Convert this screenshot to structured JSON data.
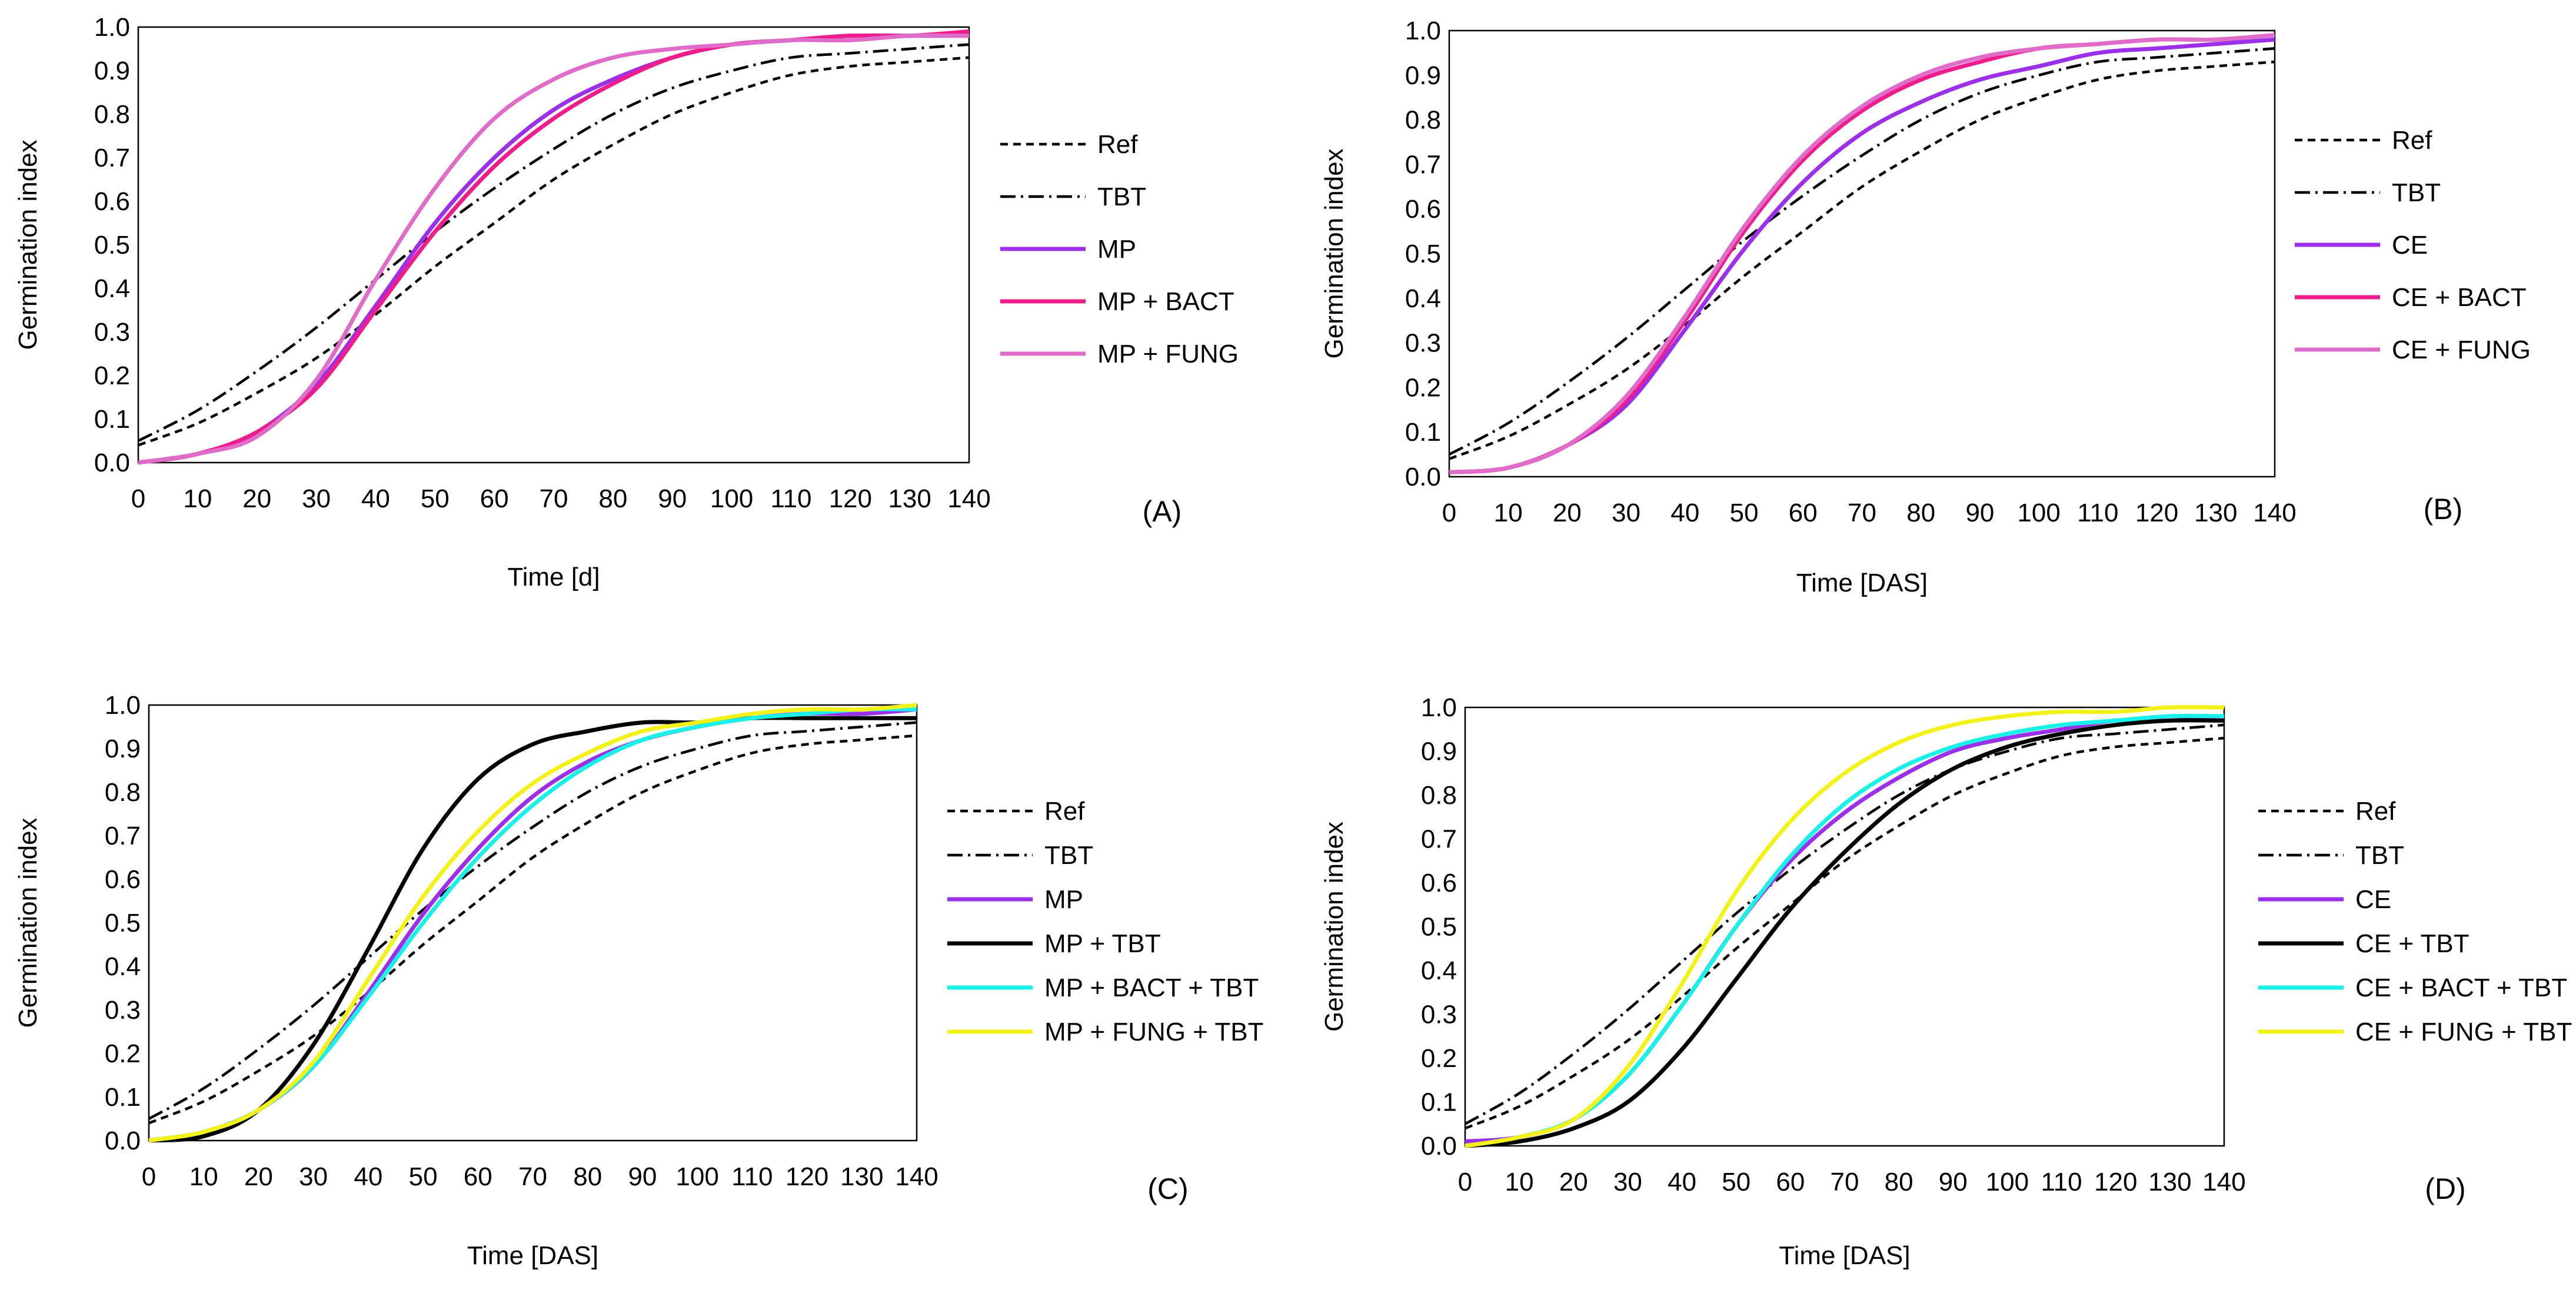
{
  "chart_data": [
    {
      "type": "line",
      "panel_label": "(A)",
      "xlabel": "Time [d]",
      "ylabel": "Germination index",
      "xlim": [
        0,
        140
      ],
      "ylim": [
        0.0,
        1.0
      ],
      "x_ticks": [
        "0",
        "10",
        "20",
        "30",
        "40",
        "50",
        "60",
        "70",
        "80",
        "90",
        "100",
        "110",
        "120",
        "130",
        "140"
      ],
      "y_ticks": [
        "0.0",
        "0.1",
        "0.2",
        "0.3",
        "0.4",
        "0.5",
        "0.6",
        "0.7",
        "0.8",
        "0.9",
        "1.0"
      ],
      "x": [
        0,
        10,
        20,
        30,
        40,
        50,
        60,
        70,
        80,
        90,
        100,
        110,
        120,
        130,
        140
      ],
      "series": [
        {
          "name": "Ref",
          "color": "#000000",
          "style": "dashed",
          "values": [
            0.04,
            0.09,
            0.16,
            0.24,
            0.34,
            0.45,
            0.55,
            0.65,
            0.73,
            0.8,
            0.85,
            0.89,
            0.91,
            0.92,
            0.93
          ]
        },
        {
          "name": "TBT",
          "color": "#000000",
          "style": "dashdot",
          "values": [
            0.05,
            0.12,
            0.21,
            0.31,
            0.42,
            0.53,
            0.63,
            0.72,
            0.8,
            0.86,
            0.9,
            0.93,
            0.94,
            0.95,
            0.96
          ]
        },
        {
          "name": "MP",
          "color": "#9b30e8",
          "style": "solid",
          "values": [
            0.0,
            0.02,
            0.07,
            0.18,
            0.36,
            0.55,
            0.7,
            0.81,
            0.88,
            0.93,
            0.96,
            0.97,
            0.98,
            0.98,
            0.98
          ]
        },
        {
          "name": "MP + BACT",
          "color": "#ef1c8c",
          "style": "solid",
          "values": [
            0.0,
            0.02,
            0.07,
            0.17,
            0.35,
            0.53,
            0.68,
            0.79,
            0.87,
            0.93,
            0.96,
            0.97,
            0.98,
            0.98,
            0.99
          ]
        },
        {
          "name": "MP + FUNG",
          "color": "#e06cc9",
          "style": "solid",
          "values": [
            0.0,
            0.02,
            0.06,
            0.19,
            0.42,
            0.63,
            0.79,
            0.88,
            0.93,
            0.95,
            0.96,
            0.97,
            0.97,
            0.98,
            0.98
          ]
        }
      ]
    },
    {
      "type": "line",
      "panel_label": "(B)",
      "xlabel": "Time [DAS]",
      "ylabel": "Germination index",
      "xlim": [
        0,
        140
      ],
      "ylim": [
        0.0,
        1.0
      ],
      "x_ticks": [
        "0",
        "10",
        "20",
        "30",
        "40",
        "50",
        "60",
        "70",
        "80",
        "90",
        "100",
        "110",
        "120",
        "130",
        "140"
      ],
      "y_ticks": [
        "0.0",
        "0.1",
        "0.2",
        "0.3",
        "0.4",
        "0.5",
        "0.6",
        "0.7",
        "0.8",
        "0.9",
        "1.0"
      ],
      "x": [
        0,
        10,
        20,
        30,
        40,
        50,
        60,
        70,
        80,
        90,
        100,
        110,
        120,
        130,
        140
      ],
      "series": [
        {
          "name": "Ref",
          "color": "#000000",
          "style": "dashed",
          "values": [
            0.04,
            0.09,
            0.16,
            0.24,
            0.34,
            0.45,
            0.55,
            0.65,
            0.73,
            0.8,
            0.85,
            0.89,
            0.91,
            0.92,
            0.93
          ]
        },
        {
          "name": "TBT",
          "color": "#000000",
          "style": "dashdot",
          "values": [
            0.05,
            0.12,
            0.21,
            0.31,
            0.42,
            0.53,
            0.63,
            0.72,
            0.8,
            0.86,
            0.9,
            0.93,
            0.94,
            0.95,
            0.96
          ]
        },
        {
          "name": "CE",
          "color": "#9b30e8",
          "style": "solid",
          "values": [
            0.01,
            0.02,
            0.07,
            0.16,
            0.33,
            0.51,
            0.66,
            0.77,
            0.84,
            0.89,
            0.92,
            0.95,
            0.96,
            0.97,
            0.98
          ]
        },
        {
          "name": "CE + BACT",
          "color": "#ef1c8c",
          "style": "solid",
          "values": [
            0.01,
            0.02,
            0.07,
            0.17,
            0.35,
            0.55,
            0.71,
            0.82,
            0.89,
            0.93,
            0.96,
            0.97,
            0.98,
            0.98,
            0.99
          ]
        },
        {
          "name": "CE + FUNG",
          "color": "#e06cc9",
          "style": "solid",
          "values": [
            0.01,
            0.02,
            0.07,
            0.18,
            0.36,
            0.56,
            0.72,
            0.83,
            0.9,
            0.94,
            0.96,
            0.97,
            0.98,
            0.98,
            0.99
          ]
        }
      ]
    },
    {
      "type": "line",
      "panel_label": "(C)",
      "xlabel": "Time [DAS]",
      "ylabel": "Germination index",
      "xlim": [
        0,
        140
      ],
      "ylim": [
        0.0,
        1.0
      ],
      "x_ticks": [
        "0",
        "10",
        "20",
        "30",
        "40",
        "50",
        "60",
        "70",
        "80",
        "90",
        "100",
        "110",
        "120",
        "130",
        "140"
      ],
      "y_ticks": [
        "0.0",
        "0.1",
        "0.2",
        "0.3",
        "0.4",
        "0.5",
        "0.6",
        "0.7",
        "0.8",
        "0.9",
        "1.0"
      ],
      "x": [
        0,
        10,
        20,
        30,
        40,
        50,
        60,
        70,
        80,
        90,
        100,
        110,
        120,
        130,
        140
      ],
      "series": [
        {
          "name": "Ref",
          "color": "#000000",
          "style": "dashed",
          "values": [
            0.04,
            0.09,
            0.16,
            0.24,
            0.34,
            0.45,
            0.55,
            0.65,
            0.73,
            0.8,
            0.85,
            0.89,
            0.91,
            0.92,
            0.93
          ]
        },
        {
          "name": "TBT",
          "color": "#000000",
          "style": "dashdot",
          "values": [
            0.05,
            0.12,
            0.21,
            0.31,
            0.42,
            0.53,
            0.63,
            0.72,
            0.8,
            0.86,
            0.9,
            0.93,
            0.94,
            0.95,
            0.96
          ]
        },
        {
          "name": "MP",
          "color": "#9b30e8",
          "style": "solid",
          "values": [
            0.0,
            0.02,
            0.07,
            0.17,
            0.34,
            0.52,
            0.67,
            0.79,
            0.87,
            0.92,
            0.95,
            0.97,
            0.98,
            0.98,
            0.99
          ]
        },
        {
          "name": "MP + TBT",
          "color": "#000000",
          "style": "solid",
          "values": [
            0.0,
            0.01,
            0.07,
            0.22,
            0.44,
            0.67,
            0.83,
            0.91,
            0.94,
            0.96,
            0.96,
            0.97,
            0.97,
            0.97,
            0.97
          ]
        },
        {
          "name": "MP + BACT + TBT",
          "color": "#19f0e8",
          "style": "solid",
          "values": [
            0.0,
            0.02,
            0.07,
            0.17,
            0.33,
            0.5,
            0.65,
            0.77,
            0.86,
            0.92,
            0.95,
            0.97,
            0.98,
            0.99,
            0.99
          ]
        },
        {
          "name": "MP + FUNG + TBT",
          "color": "#f2f21a",
          "style": "solid",
          "values": [
            0.0,
            0.02,
            0.07,
            0.18,
            0.37,
            0.56,
            0.71,
            0.82,
            0.89,
            0.94,
            0.96,
            0.98,
            0.99,
            0.99,
            1.0
          ]
        }
      ]
    },
    {
      "type": "line",
      "panel_label": "(D)",
      "xlabel": "Time [DAS]",
      "ylabel": "Germination index",
      "xlim": [
        0,
        140
      ],
      "ylim": [
        0.0,
        1.0
      ],
      "x_ticks": [
        "0",
        "10",
        "20",
        "30",
        "40",
        "50",
        "60",
        "70",
        "80",
        "90",
        "100",
        "110",
        "120",
        "130",
        "140"
      ],
      "y_ticks": [
        "0.0",
        "0.1",
        "0.2",
        "0.3",
        "0.4",
        "0.5",
        "0.6",
        "0.7",
        "0.8",
        "0.9",
        "1.0"
      ],
      "x": [
        0,
        10,
        20,
        30,
        40,
        50,
        60,
        70,
        80,
        90,
        100,
        110,
        120,
        130,
        140
      ],
      "series": [
        {
          "name": "Ref",
          "color": "#000000",
          "style": "dashed",
          "values": [
            0.04,
            0.09,
            0.16,
            0.24,
            0.34,
            0.45,
            0.55,
            0.65,
            0.73,
            0.8,
            0.85,
            0.89,
            0.91,
            0.92,
            0.93
          ]
        },
        {
          "name": "TBT",
          "color": "#000000",
          "style": "dashdot",
          "values": [
            0.05,
            0.12,
            0.21,
            0.31,
            0.42,
            0.53,
            0.63,
            0.72,
            0.8,
            0.86,
            0.9,
            0.93,
            0.94,
            0.95,
            0.96
          ]
        },
        {
          "name": "CE",
          "color": "#9b30e8",
          "style": "solid",
          "values": [
            0.01,
            0.02,
            0.06,
            0.16,
            0.32,
            0.5,
            0.65,
            0.76,
            0.84,
            0.9,
            0.93,
            0.95,
            0.97,
            0.97,
            0.98
          ]
        },
        {
          "name": "CE + TBT",
          "color": "#000000",
          "style": "solid",
          "values": [
            0.0,
            0.01,
            0.04,
            0.1,
            0.22,
            0.38,
            0.54,
            0.67,
            0.78,
            0.86,
            0.91,
            0.94,
            0.96,
            0.97,
            0.97
          ]
        },
        {
          "name": "CE + BACT + TBT",
          "color": "#19f0e8",
          "style": "solid",
          "values": [
            0.0,
            0.02,
            0.06,
            0.16,
            0.32,
            0.5,
            0.66,
            0.78,
            0.86,
            0.91,
            0.94,
            0.96,
            0.97,
            0.98,
            0.98
          ]
        },
        {
          "name": "CE + FUNG + TBT",
          "color": "#f2f21a",
          "style": "solid",
          "values": [
            0.0,
            0.02,
            0.06,
            0.18,
            0.37,
            0.58,
            0.74,
            0.85,
            0.92,
            0.96,
            0.98,
            0.99,
            0.99,
            1.0,
            1.0
          ]
        }
      ]
    }
  ]
}
